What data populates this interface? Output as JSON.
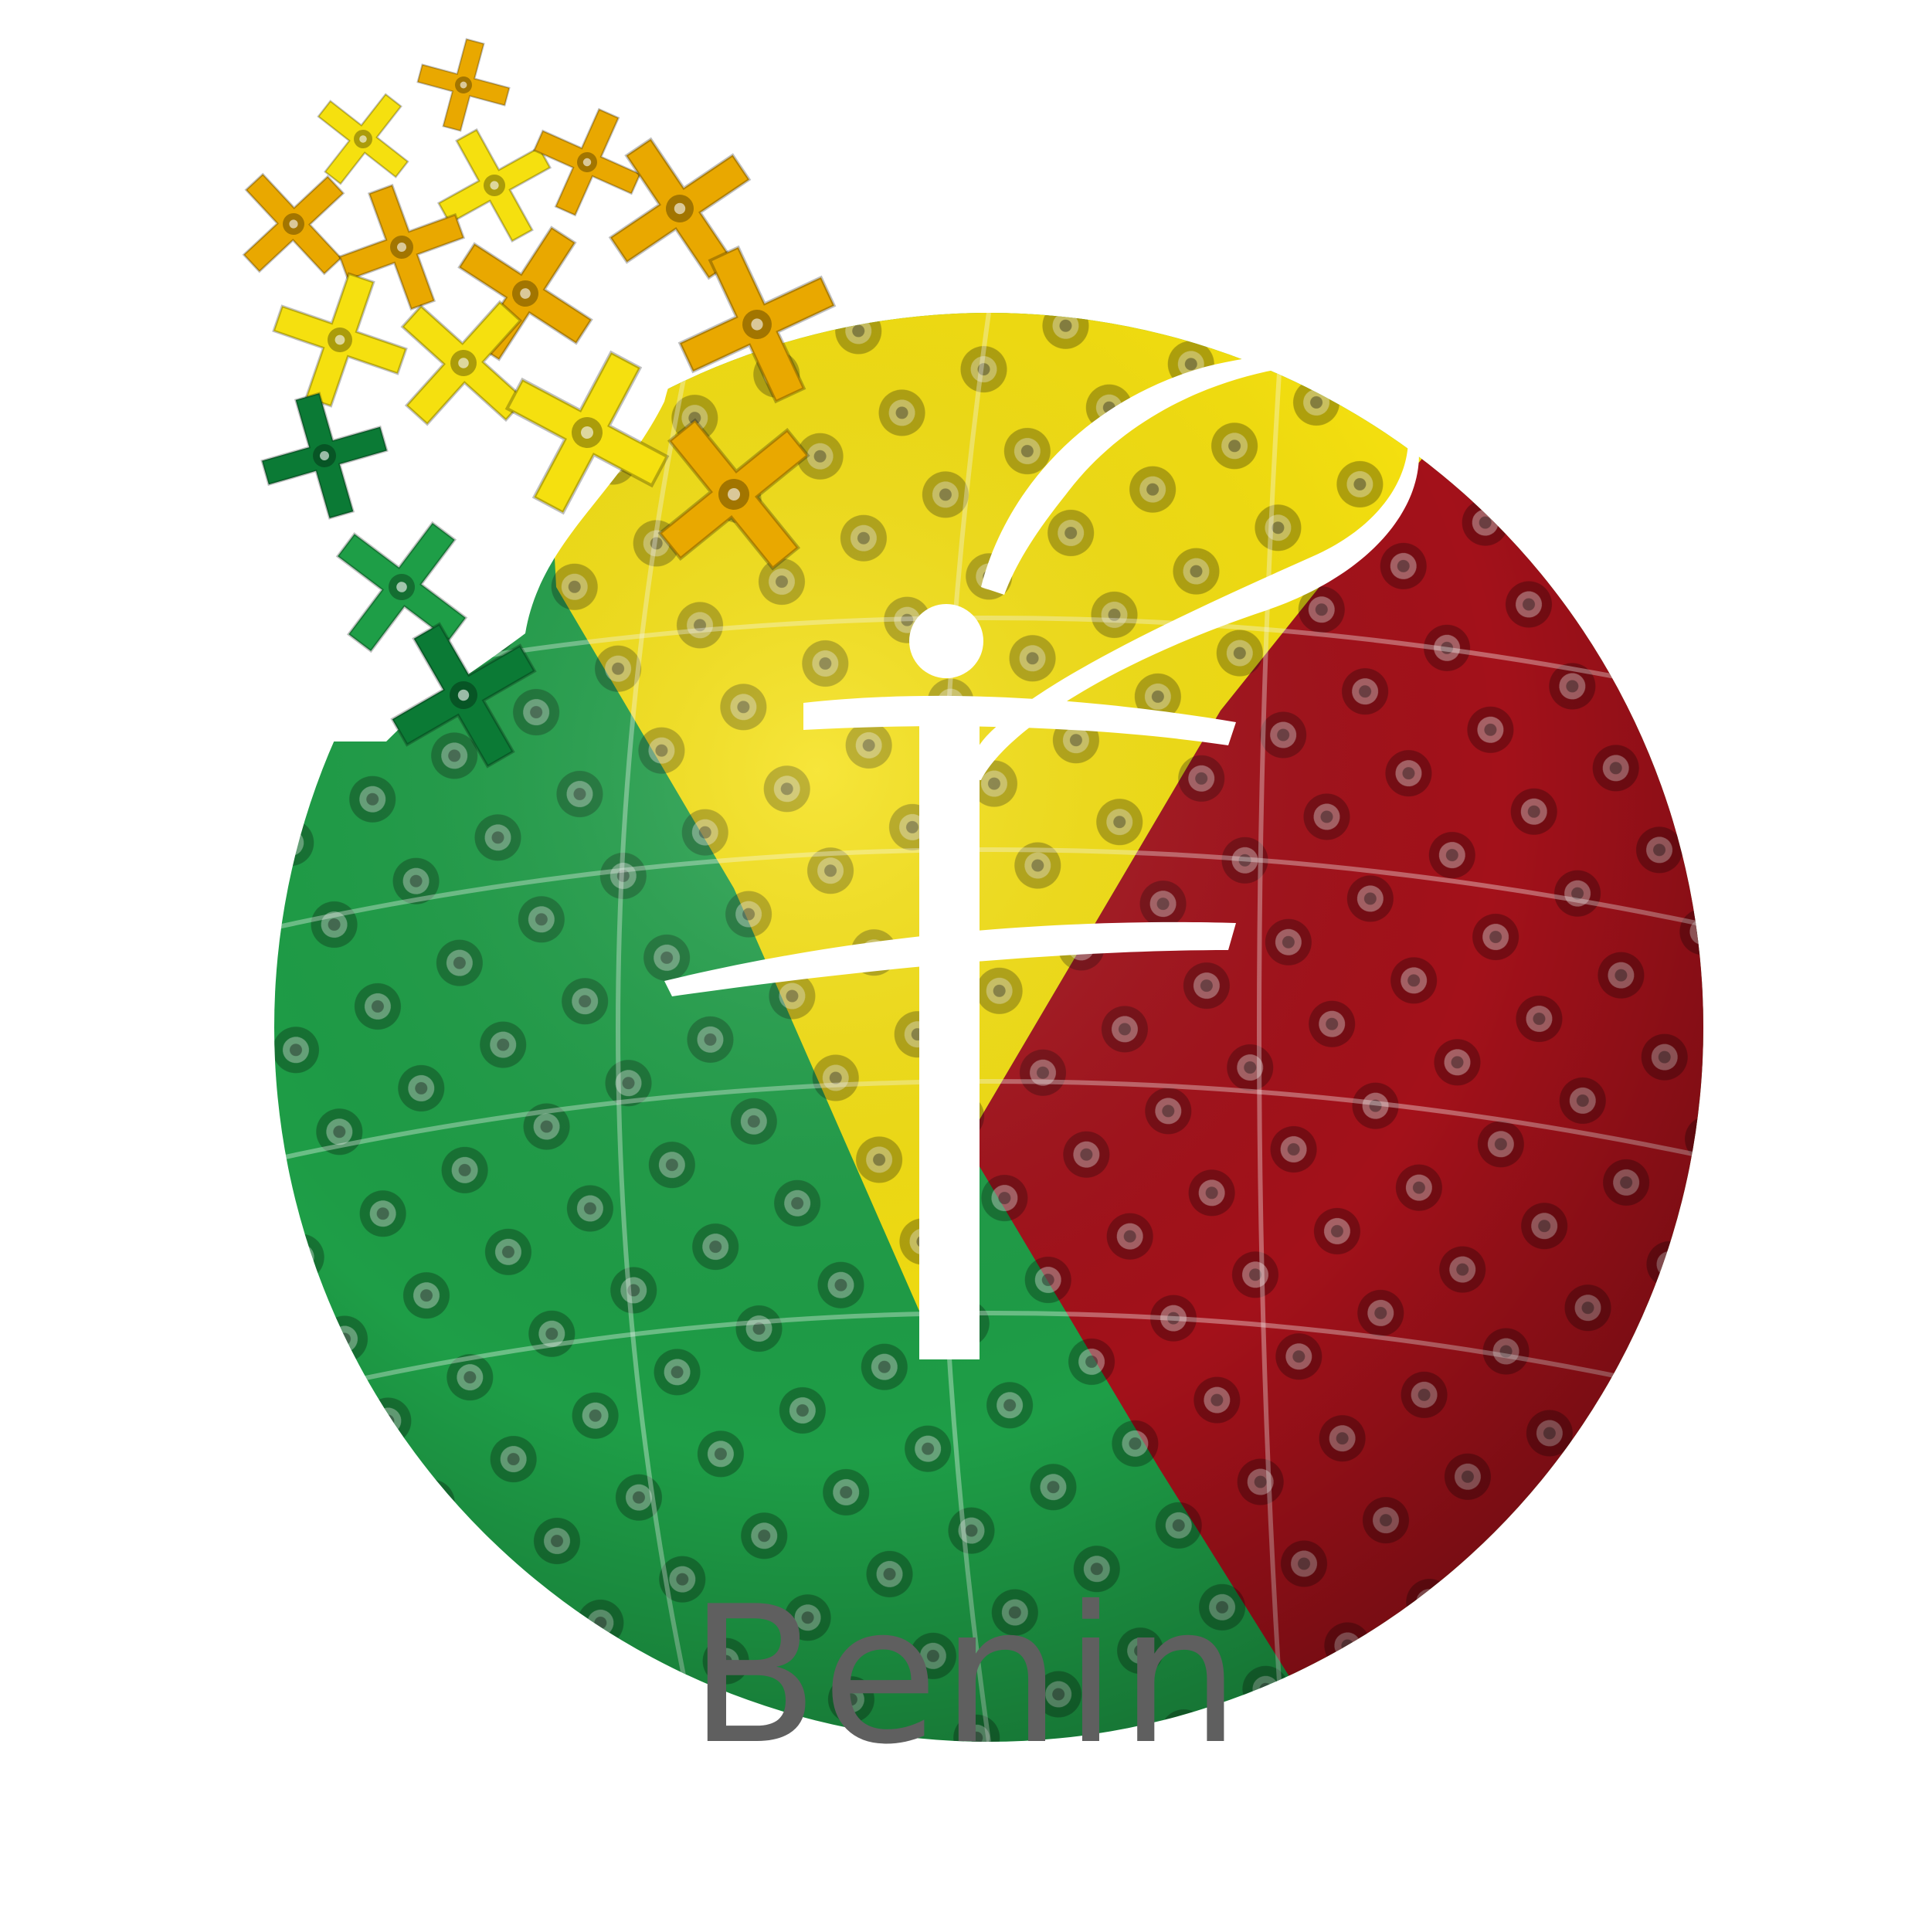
{
  "caption": "Benin",
  "colors": {
    "green": "#1e9e47",
    "dark_green": "#0b7a35",
    "yellow": "#f5e00f",
    "amber": "#e9a800",
    "red": "#a3111a",
    "dark_red": "#7c070c",
    "symbol": "#ffffff",
    "caption_text": "#5f5f5f"
  },
  "logo": {
    "icon": "puzzle-sphere-icon",
    "symbol_icon": "f-glyph-symbol-icon",
    "flag_sections": [
      "green",
      "yellow",
      "red"
    ]
  }
}
